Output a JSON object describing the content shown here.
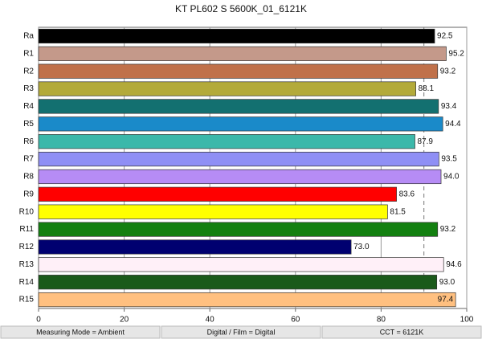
{
  "chart_data": {
    "type": "hbar",
    "title": "KT PL602 S 5600K_01_6121K",
    "categories": [
      "Ra",
      "R1",
      "R2",
      "R3",
      "R4",
      "R5",
      "R6",
      "R7",
      "R8",
      "R9",
      "R10",
      "R11",
      "R12",
      "R13",
      "R14",
      "R15"
    ],
    "values": [
      92.5,
      95.2,
      93.2,
      88.1,
      93.4,
      94.4,
      87.9,
      93.5,
      94.0,
      83.6,
      81.5,
      93.2,
      73.0,
      94.6,
      93.0,
      97.4
    ],
    "value_labels": [
      "92.5",
      "95.2",
      "93.2",
      "88.1",
      "93.4",
      "94.4",
      "87.9",
      "93.5",
      "94.0",
      "83.6",
      "81.5",
      "93.2",
      "73.0",
      "94.6",
      "93.0",
      "97.4"
    ],
    "colors": [
      "#000000",
      "#c4998a",
      "#c0714a",
      "#b3aa3a",
      "#137070",
      "#1a8ac9",
      "#3bb8aa",
      "#8f8ff5",
      "#b68cf5",
      "#ff0000",
      "#ffff00",
      "#138010",
      "#000070",
      "#fff0f8",
      "#1a5a1a",
      "#ffc080"
    ],
    "xlim": [
      0,
      100
    ],
    "xticks": [
      0,
      20,
      40,
      60,
      80,
      100
    ],
    "grid": true,
    "reference_lines": [
      90
    ]
  },
  "footer": [
    "Measuring Mode = Ambient",
    "Digital / Film = Digital",
    "CCT = 6121K"
  ]
}
